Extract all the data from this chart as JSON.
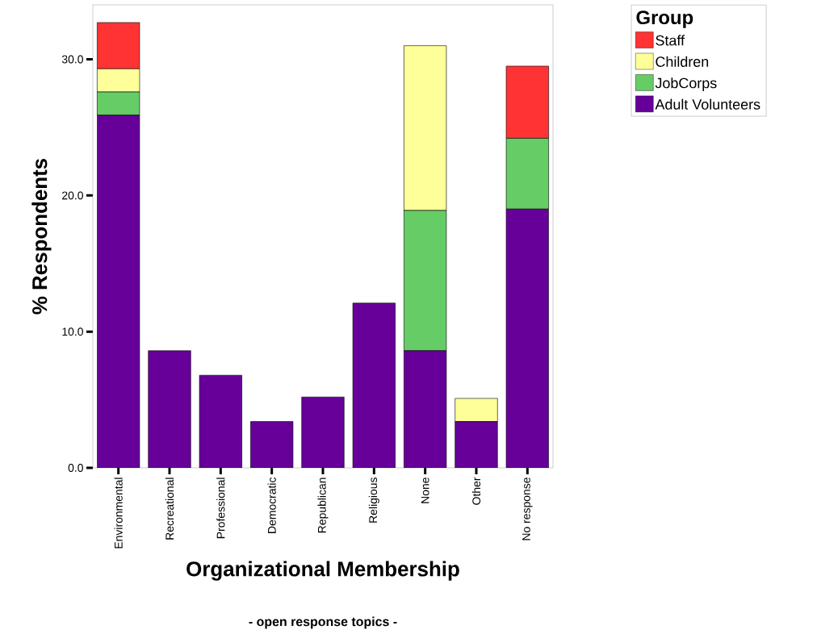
{
  "chart_data": {
    "type": "bar",
    "stacked": true,
    "xlabel": "Organizational Membership",
    "ylabel": "% Respondents",
    "legend_title": "Group",
    "annotations": [
      "- open response topics -"
    ],
    "categories": [
      "Environmental",
      "Recreational",
      "Professional",
      "Democratic",
      "Republican",
      "Religious",
      "None",
      "Other",
      "No response"
    ],
    "series": [
      {
        "name": "Adult Volunteers",
        "color": "#660099",
        "values": [
          25.9,
          8.6,
          6.8,
          3.4,
          5.2,
          12.1,
          8.6,
          3.4,
          19.0
        ]
      },
      {
        "name": "JobCorps",
        "color": "#66cc66",
        "values": [
          1.7,
          null,
          null,
          null,
          null,
          null,
          10.3,
          null,
          5.2
        ]
      },
      {
        "name": "Children",
        "color": "#ffff99",
        "values": [
          1.7,
          null,
          null,
          null,
          null,
          null,
          12.1,
          1.7,
          null
        ]
      },
      {
        "name": "Staff",
        "color": "#ff3333",
        "values": [
          3.4,
          null,
          null,
          null,
          null,
          null,
          null,
          null,
          5.3
        ]
      }
    ],
    "ylim": [
      0,
      34
    ],
    "yticks": [
      {
        "value": 0,
        "label": "0.0"
      },
      {
        "value": 10,
        "label": "10.0"
      },
      {
        "value": 20,
        "label": "20.0"
      },
      {
        "value": 30,
        "label": "30.0"
      }
    ],
    "legend": "top right",
    "grid": false
  }
}
